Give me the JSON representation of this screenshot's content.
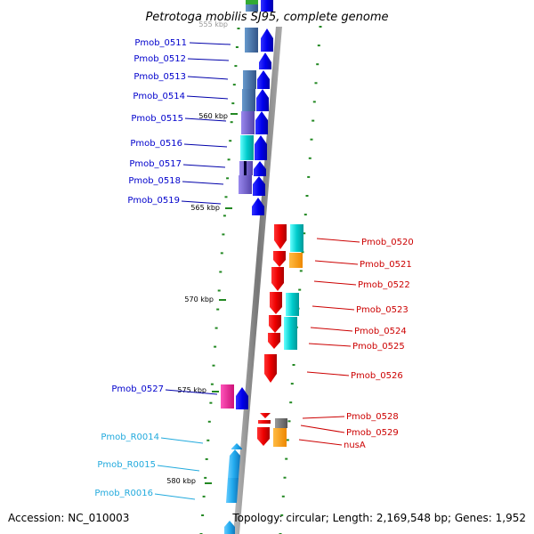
{
  "title": "Petrotoga mobilis SJ95, complete genome",
  "footer": {
    "accession": "Accession: NC_010003",
    "topology": "Topology: circular; Length: 2,169,548 bp; Genes: 1,952"
  },
  "scale_marks": [
    {
      "label": "555 kbp",
      "pos_kbp": 555
    },
    {
      "label": "560 kbp",
      "pos_kbp": 560
    },
    {
      "label": "565 kbp",
      "pos_kbp": 565
    },
    {
      "label": "570 kbp",
      "pos_kbp": 570
    },
    {
      "label": "575 kbp",
      "pos_kbp": 575
    },
    {
      "label": "580 kbp",
      "pos_kbp": 580
    }
  ],
  "left_genes": [
    {
      "label": "Pmob_0511",
      "color": "#0000cc"
    },
    {
      "label": "Pmob_0512",
      "color": "#0000cc"
    },
    {
      "label": "Pmob_0513",
      "color": "#0000cc"
    },
    {
      "label": "Pmob_0514",
      "color": "#0000cc"
    },
    {
      "label": "Pmob_0515",
      "color": "#0000cc"
    },
    {
      "label": "Pmob_0516",
      "color": "#0000cc"
    },
    {
      "label": "Pmob_0517",
      "color": "#0000cc"
    },
    {
      "label": "Pmob_0518",
      "color": "#0000cc"
    },
    {
      "label": "Pmob_0519",
      "color": "#0000cc"
    },
    {
      "label": "Pmob_0527",
      "color": "#0000cc"
    },
    {
      "label": "Pmob_R0014",
      "color": "#22aadd"
    },
    {
      "label": "Pmob_R0015",
      "color": "#22aadd"
    },
    {
      "label": "Pmob_R0016",
      "color": "#22aadd"
    }
  ],
  "right_genes": [
    {
      "label": "Pmob_0520",
      "color": "#cc0000"
    },
    {
      "label": "Pmob_0521",
      "color": "#cc0000"
    },
    {
      "label": "Pmob_0522",
      "color": "#cc0000"
    },
    {
      "label": "Pmob_0523",
      "color": "#cc0000"
    },
    {
      "label": "Pmob_0524",
      "color": "#cc0000"
    },
    {
      "label": "Pmob_0525",
      "color": "#cc0000"
    },
    {
      "label": "Pmob_0526",
      "color": "#cc0000"
    },
    {
      "label": "Pmob_0528",
      "color": "#cc0000"
    },
    {
      "label": "Pmob_0529",
      "color": "#cc0000"
    },
    {
      "label": "nusA",
      "color": "#cc0000"
    }
  ],
  "colors": {
    "forward_gene": "#0000ee",
    "reverse_gene": "#ee0000",
    "rna_gene": "#22aaee",
    "cog_cyan": "#00cccc",
    "cog_orange": "#ff9900",
    "cog_steel": "#4477aa",
    "cog_purple": "#7766cc",
    "cog_magenta": "#ee2299",
    "cog_gray": "#777777",
    "backbone": "#888888",
    "tick": "#228822"
  }
}
